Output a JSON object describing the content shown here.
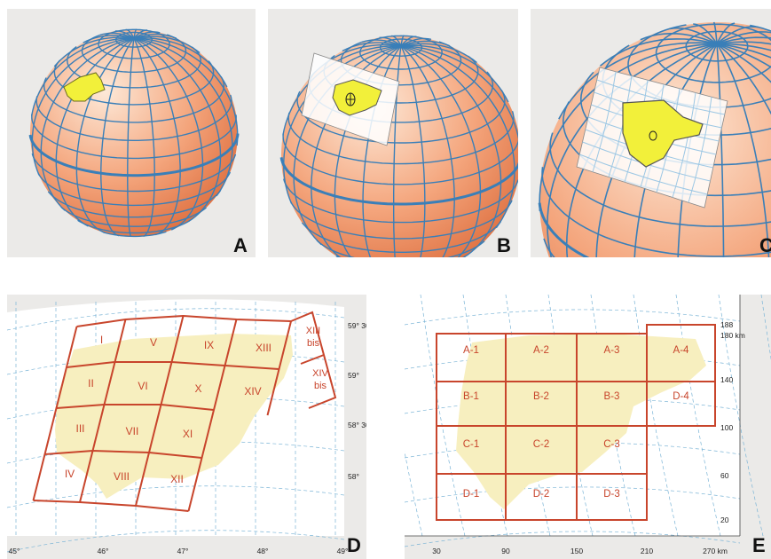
{
  "panels": [
    {
      "id": "A",
      "label": "A"
    },
    {
      "id": "B",
      "label": "B"
    },
    {
      "id": "C",
      "label": "C"
    },
    {
      "id": "D",
      "label": "D"
    },
    {
      "id": "E",
      "label": "E"
    }
  ],
  "map_d": {
    "grid_rows": [
      [
        "I",
        "V",
        "IX",
        "XIII"
      ],
      [
        "II",
        "VI",
        "X",
        "XIV"
      ],
      [
        "III",
        "VII",
        "XI"
      ],
      [
        "IV",
        "VIII",
        "XII"
      ]
    ],
    "bis_labels": [
      {
        "line1": "XIII",
        "line2": "bis"
      },
      {
        "line1": "XIV",
        "line2": "bis"
      }
    ],
    "lat_labels": [
      "59° 30'",
      "59°",
      "58° 30'",
      "58°"
    ],
    "lon_labels": [
      "45°",
      "46°",
      "47°",
      "48°",
      "49°"
    ]
  },
  "map_e": {
    "grid_rows": [
      [
        "A-1",
        "A-2",
        "A-3",
        "A-4"
      ],
      [
        "B-1",
        "B-2",
        "B-3",
        "D-4"
      ],
      [
        "C-1",
        "C-2",
        "C-3"
      ],
      [
        "D-1",
        "D-2",
        "D-3"
      ]
    ],
    "y_labels": [
      "188",
      "180 km",
      "140",
      "100",
      "60",
      "20"
    ],
    "x_labels": [
      "30",
      "90",
      "150",
      "210",
      "270 km"
    ]
  },
  "colors": {
    "panel_bg": "#ebeae8",
    "globe_light": "#fde6d4",
    "globe_dark": "#e4794a",
    "grid_blue": "#3a7fb8",
    "area_yellow": "#f2f03a",
    "sheet_red": "#c8452c",
    "map_fill": "#f7efbf"
  }
}
